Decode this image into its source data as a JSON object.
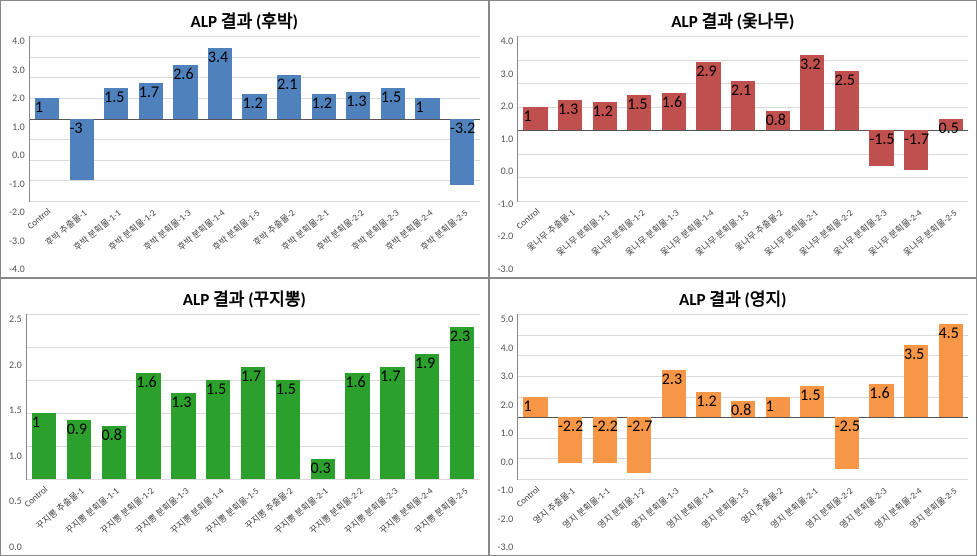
{
  "grid_color": "#d9d9d9",
  "axis_color": "#888888",
  "title_fontsize": 17,
  "charts": [
    {
      "title": "ALP 결과 (후박)",
      "type": "bar",
      "bar_color": "#4f81bd",
      "background_color": "#ffffff",
      "ylim": [
        -4.0,
        4.0
      ],
      "ytick_step": 1.0,
      "categories": [
        "Control",
        "후박 추출물-1",
        "후박 분획물-1-1",
        "후박 분획물-1-2",
        "후박 분획물-1-3",
        "후박 분획물-1-4",
        "후박 분획물-1-5",
        "후박 추출물-2",
        "후박 분획물-2-1",
        "후박 분획물-2-2",
        "후박 분획물-2-3",
        "후박 분획물-2-4",
        "후박 분획물-2-5"
      ],
      "values": [
        1.0,
        -3.0,
        1.5,
        1.7,
        2.6,
        3.4,
        1.2,
        2.1,
        1.2,
        1.3,
        1.5,
        1.0,
        -3.2
      ]
    },
    {
      "title": "ALP 결과 (옻나무)",
      "type": "bar",
      "bar_color": "#c0504d",
      "background_color": "#ffffff",
      "ylim": [
        -3.0,
        4.0
      ],
      "ytick_step": 1.0,
      "categories": [
        "Control",
        "옻나무 추출물-1",
        "옻나무 분획물-1-1",
        "옻나무 분획물-1-2",
        "옻나무 분획물-1-3",
        "옻나무 분획물-1-4",
        "옻나무 분획물-1-5",
        "옻나무 추출물-2",
        "옻나무 분획물-2-1",
        "옻나무 분획물-2-2",
        "옻나무 분획물-2-3",
        "옻나무 분획물-2-4",
        "옻나무 분획물-2-5"
      ],
      "values": [
        1.0,
        1.3,
        1.2,
        1.5,
        1.6,
        2.9,
        2.1,
        0.8,
        3.2,
        2.5,
        -1.5,
        -1.7,
        0.5
      ]
    },
    {
      "title": "ALP 결과 (꾸지뽕)",
      "type": "bar",
      "bar_color": "#2ca02c",
      "background_color": "#ffffff",
      "ylim": [
        0.0,
        2.5
      ],
      "ytick_step": 0.5,
      "categories": [
        "Control",
        "꾸지뽕 추출물-1",
        "꾸지뽕 분획물-1-1",
        "꾸지뽕 분획물-1-2",
        "꾸지뽕 분획물-1-3",
        "꾸지뽕 분획물-1-4",
        "꾸지뽕 분획물-1-5",
        "꾸지뽕 추출물-2",
        "꾸지뽕 분획물-2-1",
        "꾸지뽕 분획물-2-2",
        "꾸지뽕 분획물-2-3",
        "꾸지뽕 분획물-2-4",
        "꾸지뽕 분획물-2-5"
      ],
      "values": [
        1.0,
        0.9,
        0.8,
        1.6,
        1.3,
        1.5,
        1.7,
        1.5,
        0.3,
        1.6,
        1.7,
        1.9,
        2.3
      ]
    },
    {
      "title": "ALP 결과 (영지)",
      "type": "bar",
      "bar_color": "#f79646",
      "background_color": "#ffffff",
      "ylim": [
        -3.0,
        5.0
      ],
      "ytick_step": 1.0,
      "categories": [
        "Control",
        "영지 추출물-1",
        "영지 분획물-1-1",
        "영지 분획물-1-2",
        "영지 분획물-1-3",
        "영지 분획물-1-4",
        "영지 분획물-1-5",
        "영지 추출물-2",
        "영지 분획물-2-1",
        "영지 분획물-2-2",
        "영지 분획물-2-3",
        "영지 분획물-2-4",
        "영지 분획물-2-5"
      ],
      "values": [
        1.0,
        -2.2,
        -2.2,
        -2.7,
        2.3,
        1.2,
        0.8,
        1.0,
        1.5,
        -2.5,
        1.6,
        3.5,
        4.5
      ]
    }
  ]
}
